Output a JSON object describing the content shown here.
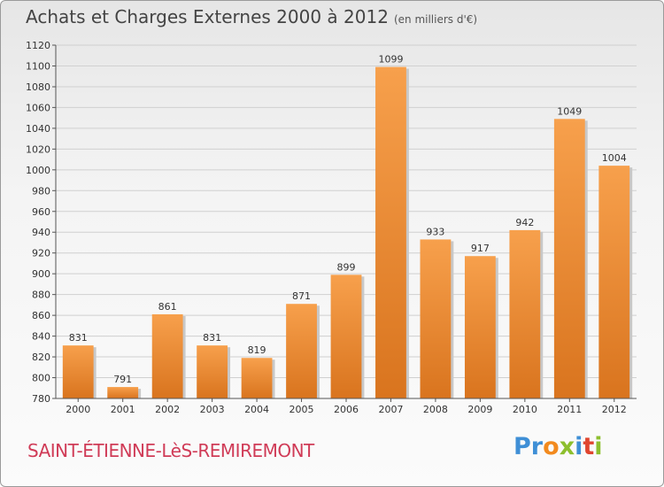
{
  "title": "Achats et Charges Externes 2000 à 2012",
  "subtitle": "(en milliers d'€)",
  "commune": "SAINT-ÉTIENNE-LèS-REMIREMONT",
  "logo": {
    "text": "Proxiti",
    "letters": [
      {
        "ch": "P",
        "color": "#3f8fd6"
      },
      {
        "ch": "r",
        "color": "#3f8fd6"
      },
      {
        "ch": "o",
        "color": "#f28a1e"
      },
      {
        "ch": "x",
        "color": "#8dbf2e"
      },
      {
        "ch": "i",
        "color": "#3f8fd6"
      },
      {
        "ch": "t",
        "color": "#e0452f"
      },
      {
        "ch": "i",
        "color": "#8dbf2e"
      }
    ]
  },
  "colors": {
    "bar_light": "#f7a04c",
    "bar_dark": "#d9741e",
    "grid": "#d0d0d0",
    "axis": "#555555",
    "label": "#333333"
  },
  "chart_data": {
    "type": "bar",
    "categories": [
      "2000",
      "2001",
      "2002",
      "2003",
      "2004",
      "2005",
      "2006",
      "2007",
      "2008",
      "2009",
      "2010",
      "2011",
      "2012"
    ],
    "values": [
      831,
      791,
      861,
      831,
      819,
      871,
      899,
      1099,
      933,
      917,
      942,
      1049,
      1004
    ],
    "title": "Achats et Charges Externes 2000 à 2012",
    "xlabel": "",
    "ylabel": "",
    "ylim": [
      780,
      1120
    ],
    "yticks": [
      780,
      800,
      820,
      840,
      860,
      880,
      900,
      920,
      940,
      960,
      980,
      1000,
      1020,
      1040,
      1060,
      1080,
      1100,
      1120
    ],
    "grid": true,
    "legend": "none"
  }
}
